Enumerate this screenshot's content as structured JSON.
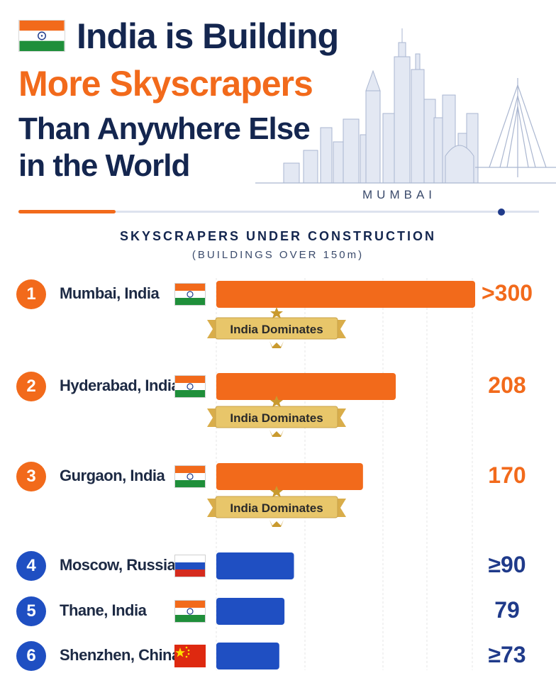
{
  "header": {
    "title_line1": "India is Building",
    "title_line2": "More Skyscrapers",
    "title_line3": "Than Anywhere Else",
    "title_line4": "in the World",
    "city_label": "MUMBAI"
  },
  "colors": {
    "india_orange": "#f26a1b",
    "other_blue": "#1f4fc2",
    "navy": "#14264f",
    "banner_gold": "#e8c66a"
  },
  "chart_data": {
    "type": "bar",
    "orientation": "horizontal",
    "title": "SKYSCRAPERS UNDER CONSTRUCTION",
    "subtitle": "(BUILDINGS OVER 150m)",
    "xlim": [
      0,
      300
    ],
    "grid": true,
    "categories": [
      "Mumbai, India",
      "Hyderabad, India",
      "Gurgaon, India",
      "Moscow, Russia",
      "Thane, India",
      "Shenzhen, China"
    ],
    "values": [
      300,
      208,
      170,
      90,
      79,
      73
    ],
    "value_labels": [
      ">300",
      "208",
      "170",
      "≥90",
      "79",
      "≥73"
    ],
    "ranks": [
      "1",
      "2",
      "3",
      "4",
      "5",
      "6"
    ],
    "flags": [
      "india-flag-icon",
      "india-flag-icon",
      "india-flag-icon",
      "russia-flag-icon",
      "india-flag-icon",
      "china-flag-icon"
    ],
    "highlight": [
      true,
      true,
      true,
      false,
      false,
      false
    ],
    "annotations": [
      "India Dominates",
      "India Dominates",
      "India Dominates"
    ]
  }
}
